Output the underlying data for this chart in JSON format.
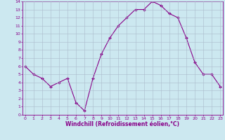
{
  "x": [
    0,
    1,
    2,
    3,
    4,
    5,
    6,
    7,
    8,
    9,
    10,
    11,
    12,
    13,
    14,
    15,
    16,
    17,
    18,
    19,
    20,
    21,
    22,
    23
  ],
  "y": [
    6,
    5,
    4.5,
    3.5,
    4,
    4.5,
    1.5,
    0.5,
    4.5,
    7.5,
    9.5,
    11,
    12,
    13,
    13,
    14,
    13.5,
    12.5,
    12,
    9.5,
    6.5,
    5,
    5,
    3.5
  ],
  "line_color": "#880088",
  "marker_color": "#880088",
  "bg_color": "#cce8f0",
  "grid_color": "#aabbcc",
  "xlabel": "Windchill (Refroidissement éolien,°C)",
  "xlabel_color": "#880088",
  "tick_color": "#880088",
  "yticks": [
    0,
    1,
    2,
    3,
    4,
    5,
    6,
    7,
    8,
    9,
    10,
    11,
    12,
    13,
    14
  ],
  "xticks": [
    0,
    1,
    2,
    3,
    4,
    5,
    6,
    7,
    8,
    9,
    10,
    11,
    12,
    13,
    14,
    15,
    16,
    17,
    18,
    19,
    20,
    21,
    22,
    23
  ]
}
